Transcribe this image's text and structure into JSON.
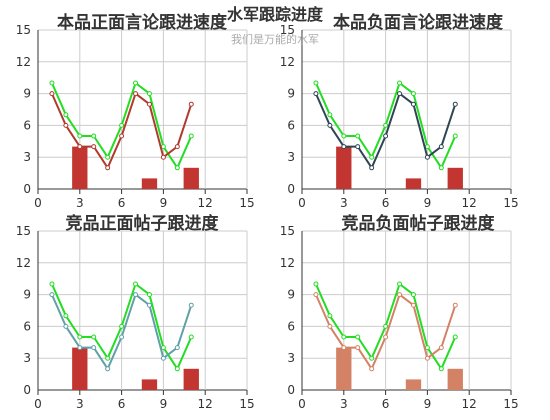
{
  "header": {
    "title": "水军跟踪进度",
    "subtitle": "我们是万能的水军"
  },
  "chart_data": [
    {
      "type": "line",
      "title": "本品正面言论跟进速度",
      "x_ticks": [
        0,
        3,
        6,
        9,
        12,
        15
      ],
      "y_ticks": [
        0,
        3,
        6,
        9,
        12,
        15
      ],
      "xlim": [
        0,
        15
      ],
      "ylim": [
        0,
        15
      ],
      "grid": true,
      "colors": {
        "line_a": "#22dd22",
        "line_b": "#b03a2e",
        "bar": "#c23531"
      },
      "series": [
        {
          "kind": "line",
          "colorKey": "line_a",
          "points": [
            [
              1,
              10
            ],
            [
              2,
              7
            ],
            [
              3,
              5
            ],
            [
              4,
              5
            ],
            [
              5,
              3
            ],
            [
              6,
              6
            ],
            [
              7,
              10
            ],
            [
              8,
              9
            ],
            [
              9,
              4
            ],
            [
              10,
              2
            ],
            [
              11,
              5
            ]
          ]
        },
        {
          "kind": "line",
          "colorKey": "line_b",
          "points": [
            [
              1,
              9
            ],
            [
              2,
              6
            ],
            [
              3,
              4
            ],
            [
              4,
              4
            ],
            [
              5,
              2
            ],
            [
              6,
              5
            ],
            [
              7,
              9
            ],
            [
              8,
              8
            ],
            [
              9,
              3
            ],
            [
              10,
              4
            ],
            [
              11,
              8
            ]
          ]
        },
        {
          "kind": "bar",
          "colorKey": "bar",
          "points": [
            [
              3,
              4
            ],
            [
              8,
              1
            ],
            [
              11,
              2
            ]
          ]
        }
      ]
    },
    {
      "type": "line",
      "title": "本品负面言论跟进速度",
      "x_ticks": [
        0,
        3,
        6,
        9,
        12,
        15
      ],
      "y_ticks": [
        0,
        3,
        6,
        9,
        12,
        15
      ],
      "xlim": [
        0,
        15
      ],
      "ylim": [
        0,
        15
      ],
      "grid": true,
      "colors": {
        "line_a": "#22dd22",
        "line_b": "#2f4554",
        "bar": "#c23531"
      },
      "series": [
        {
          "kind": "line",
          "colorKey": "line_a",
          "points": [
            [
              1,
              10
            ],
            [
              2,
              7
            ],
            [
              3,
              5
            ],
            [
              4,
              5
            ],
            [
              5,
              3
            ],
            [
              6,
              6
            ],
            [
              7,
              10
            ],
            [
              8,
              9
            ],
            [
              9,
              4
            ],
            [
              10,
              2
            ],
            [
              11,
              5
            ]
          ]
        },
        {
          "kind": "line",
          "colorKey": "line_b",
          "points": [
            [
              1,
              9
            ],
            [
              2,
              6
            ],
            [
              3,
              4
            ],
            [
              4,
              4
            ],
            [
              5,
              2
            ],
            [
              6,
              5
            ],
            [
              7,
              9
            ],
            [
              8,
              8
            ],
            [
              9,
              3
            ],
            [
              10,
              4
            ],
            [
              11,
              8
            ]
          ]
        },
        {
          "kind": "bar",
          "colorKey": "bar",
          "points": [
            [
              3,
              4
            ],
            [
              8,
              1
            ],
            [
              11,
              2
            ]
          ]
        }
      ]
    },
    {
      "type": "line",
      "title": "竞品正面帖子跟进度",
      "x_ticks": [
        0,
        3,
        6,
        9,
        12,
        15
      ],
      "y_ticks": [
        0,
        3,
        6,
        9,
        12,
        15
      ],
      "xlim": [
        0,
        15
      ],
      "ylim": [
        0,
        15
      ],
      "grid": true,
      "colors": {
        "line_a": "#22dd22",
        "line_b": "#61a0a8",
        "bar": "#c23531"
      },
      "series": [
        {
          "kind": "line",
          "colorKey": "line_a",
          "points": [
            [
              1,
              10
            ],
            [
              2,
              7
            ],
            [
              3,
              5
            ],
            [
              4,
              5
            ],
            [
              5,
              3
            ],
            [
              6,
              6
            ],
            [
              7,
              10
            ],
            [
              8,
              9
            ],
            [
              9,
              4
            ],
            [
              10,
              2
            ],
            [
              11,
              5
            ]
          ]
        },
        {
          "kind": "line",
          "colorKey": "line_b",
          "points": [
            [
              1,
              9
            ],
            [
              2,
              6
            ],
            [
              3,
              4
            ],
            [
              4,
              4
            ],
            [
              5,
              2
            ],
            [
              6,
              5
            ],
            [
              7,
              9
            ],
            [
              8,
              8
            ],
            [
              9,
              3
            ],
            [
              10,
              4
            ],
            [
              11,
              8
            ]
          ]
        },
        {
          "kind": "bar",
          "colorKey": "bar",
          "points": [
            [
              3,
              4
            ],
            [
              8,
              1
            ],
            [
              11,
              2
            ]
          ]
        }
      ]
    },
    {
      "type": "line",
      "title": "竞品负面帖子跟进度",
      "x_ticks": [
        0,
        3,
        6,
        9,
        12,
        15
      ],
      "y_ticks": [
        0,
        3,
        6,
        9,
        12,
        15
      ],
      "xlim": [
        0,
        15
      ],
      "ylim": [
        0,
        15
      ],
      "grid": true,
      "colors": {
        "line_a": "#22dd22",
        "line_b": "#d48265",
        "bar": "#d48265"
      },
      "series": [
        {
          "kind": "line",
          "colorKey": "line_a",
          "points": [
            [
              1,
              10
            ],
            [
              2,
              7
            ],
            [
              3,
              5
            ],
            [
              4,
              5
            ],
            [
              5,
              3
            ],
            [
              6,
              6
            ],
            [
              7,
              10
            ],
            [
              8,
              9
            ],
            [
              9,
              4
            ],
            [
              10,
              2
            ],
            [
              11,
              5
            ]
          ]
        },
        {
          "kind": "line",
          "colorKey": "line_b",
          "points": [
            [
              1,
              9
            ],
            [
              2,
              6
            ],
            [
              3,
              4
            ],
            [
              4,
              4
            ],
            [
              5,
              2
            ],
            [
              6,
              5
            ],
            [
              7,
              9
            ],
            [
              8,
              8
            ],
            [
              9,
              3
            ],
            [
              10,
              4
            ],
            [
              11,
              8
            ]
          ]
        },
        {
          "kind": "bar",
          "colorKey": "bar",
          "points": [
            [
              3,
              4
            ],
            [
              8,
              1
            ],
            [
              11,
              2
            ]
          ]
        }
      ]
    }
  ]
}
